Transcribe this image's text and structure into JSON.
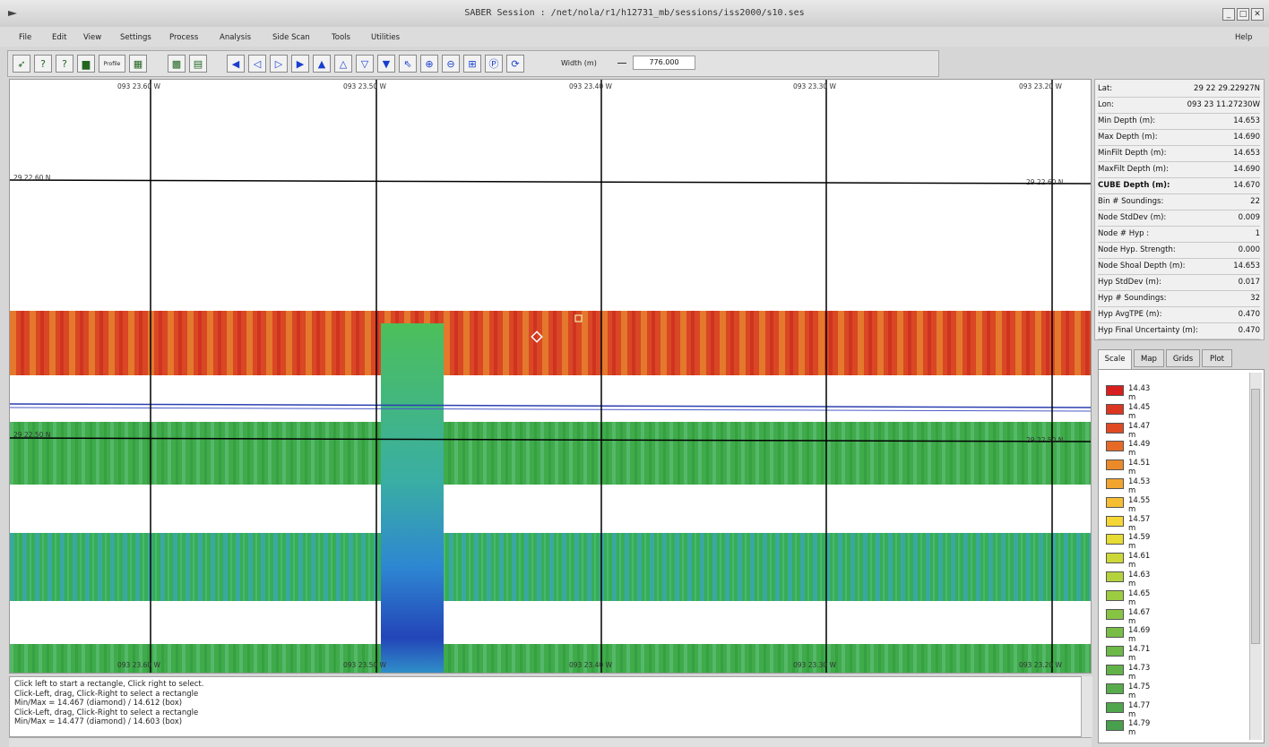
{
  "window": {
    "title": "SABER Session : /net/nola/r1/h12731_mb/sessions/iss2000/s10.ses",
    "buttons": [
      "_",
      "□",
      "✕"
    ]
  },
  "menu": {
    "items": [
      "File",
      "Edit",
      "View",
      "Settings",
      "Process",
      "Analysis",
      "Side Scan",
      "Tools",
      "Utilities"
    ],
    "help": "Help"
  },
  "toolbar": {
    "width_label": "Width (m)",
    "width_value": "776.000",
    "profile_label": "Profile"
  },
  "map": {
    "top_lon_labels": [
      "093 23.60 W",
      "093 23.50 W",
      "093 23.40 W",
      "093 23.30 W",
      "093 23.20 W"
    ],
    "bottom_lon_labels": [
      "093 23.60 W",
      "093 23.50 W",
      "093 23.40 W",
      "093 23.30 W",
      "093 23.20 W"
    ],
    "lat_labels_left": [
      "29 22.60 N",
      "29 22.50 N"
    ],
    "lat_labels_right": [
      "29 22.60 N",
      "29 22.50 N"
    ]
  },
  "status": {
    "lines": [
      "Click left to start a rectangle, Click right to select.",
      "Click-Left, drag, Click-Right to select a rectangle",
      "Min/Max = 14.467 (diamond) / 14.612 (box)",
      "Click-Left, drag, Click-Right to select a rectangle",
      "Min/Max = 14.477 (diamond) / 14.603 (box)"
    ]
  },
  "info": {
    "rows": [
      {
        "k": "Lat:",
        "v": "29 22 29.22927N"
      },
      {
        "k": "Lon:",
        "v": "093 23 11.27230W"
      },
      {
        "k": "Min Depth (m):",
        "v": "14.653"
      },
      {
        "k": "Max Depth (m):",
        "v": "14.690"
      },
      {
        "k": "MinFilt Depth (m):",
        "v": "14.653"
      },
      {
        "k": "MaxFilt Depth (m):",
        "v": "14.690"
      },
      {
        "k": "CUBE Depth (m):",
        "v": "14.670"
      },
      {
        "k": "Bin # Soundings:",
        "v": "22"
      },
      {
        "k": "Node StdDev (m):",
        "v": "0.009"
      },
      {
        "k": "Node # Hyp :",
        "v": "1"
      },
      {
        "k": "Node Hyp. Strength:",
        "v": "0.000"
      },
      {
        "k": "Node Shoal Depth (m):",
        "v": "14.653"
      },
      {
        "k": "Hyp StdDev (m):",
        "v": "0.017"
      },
      {
        "k": "Hyp # Soundings:",
        "v": "32"
      },
      {
        "k": "Hyp AvgTPE (m):",
        "v": "0.470"
      },
      {
        "k": "Hyp Final Uncertainty (m):",
        "v": "0.470"
      }
    ]
  },
  "tabs": [
    "Scale",
    "Map",
    "Grids",
    "Plot"
  ],
  "scale": [
    {
      "label": "14.43 m",
      "color": "#d81e1e"
    },
    {
      "label": "14.45 m",
      "color": "#da3620"
    },
    {
      "label": "14.47 m",
      "color": "#e04a22"
    },
    {
      "label": "14.49 m",
      "color": "#e66a26"
    },
    {
      "label": "14.51 m",
      "color": "#ec8a2a"
    },
    {
      "label": "14.53 m",
      "color": "#f1a42e"
    },
    {
      "label": "14.55 m",
      "color": "#f5be32"
    },
    {
      "label": "14.57 m",
      "color": "#f5d634"
    },
    {
      "label": "14.59 m",
      "color": "#e6dc34"
    },
    {
      "label": "14.61 m",
      "color": "#cdd838"
    },
    {
      "label": "14.63 m",
      "color": "#b4d23c"
    },
    {
      "label": "14.65 m",
      "color": "#9ccc40"
    },
    {
      "label": "14.67 m",
      "color": "#88c444"
    },
    {
      "label": "14.69 m",
      "color": "#78be46"
    },
    {
      "label": "14.71 m",
      "color": "#6cb848"
    },
    {
      "label": "14.73 m",
      "color": "#62b24a"
    },
    {
      "label": "14.75 m",
      "color": "#58ac4c"
    },
    {
      "label": "14.77 m",
      "color": "#50a64c"
    },
    {
      "label": "14.79 m",
      "color": "#48a04c"
    }
  ]
}
